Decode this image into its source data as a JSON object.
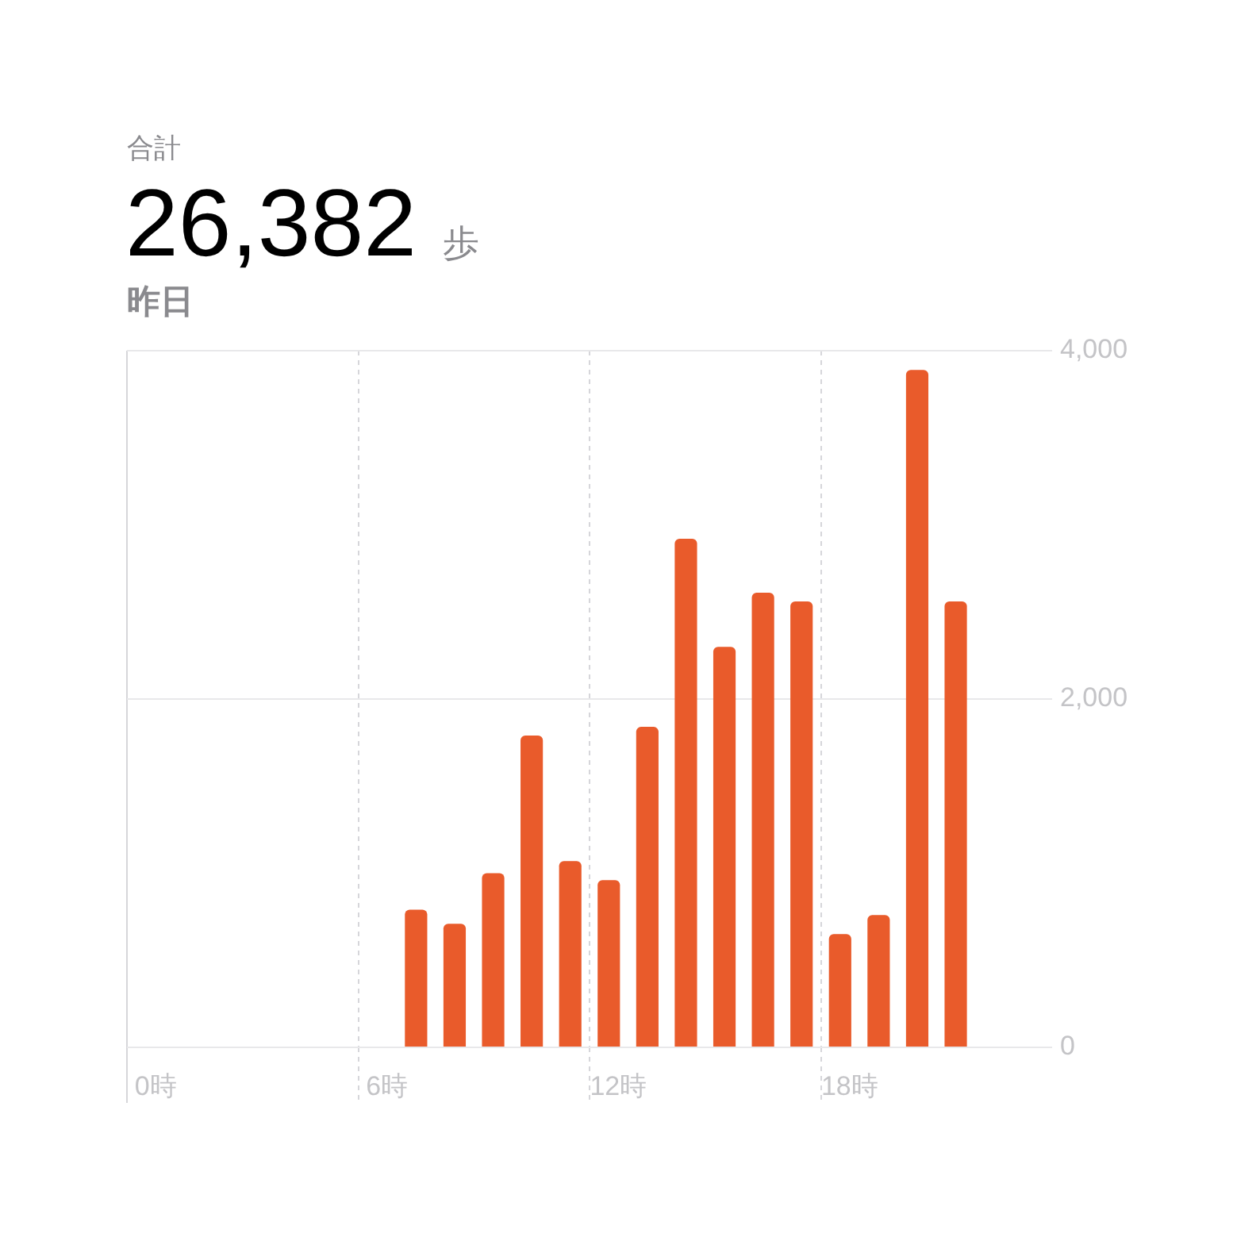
{
  "chart_data": {
    "type": "bar",
    "annotations": [
      "合計"
    ],
    "title": "26,382 歩",
    "subtitle": "昨日",
    "categories": [
      "0時",
      null,
      null,
      null,
      null,
      null,
      "6時",
      null,
      null,
      null,
      null,
      null,
      "12時",
      null,
      null,
      null,
      null,
      null,
      "18時",
      null,
      null,
      null,
      null,
      null
    ],
    "values": [
      null,
      null,
      null,
      null,
      null,
      null,
      null,
      790,
      710,
      1000,
      1790,
      1070,
      960,
      1840,
      2920,
      2300,
      2610,
      2560,
      650,
      760,
      3890,
      2560,
      null,
      null
    ],
    "color": "#e95b2b",
    "ylim": [
      0,
      4000
    ],
    "yticks": [
      0,
      {
        "value": 2000,
        "label": "2,000"
      },
      {
        "value": 4000,
        "label": "4,000"
      }
    ],
    "grid": true
  }
}
